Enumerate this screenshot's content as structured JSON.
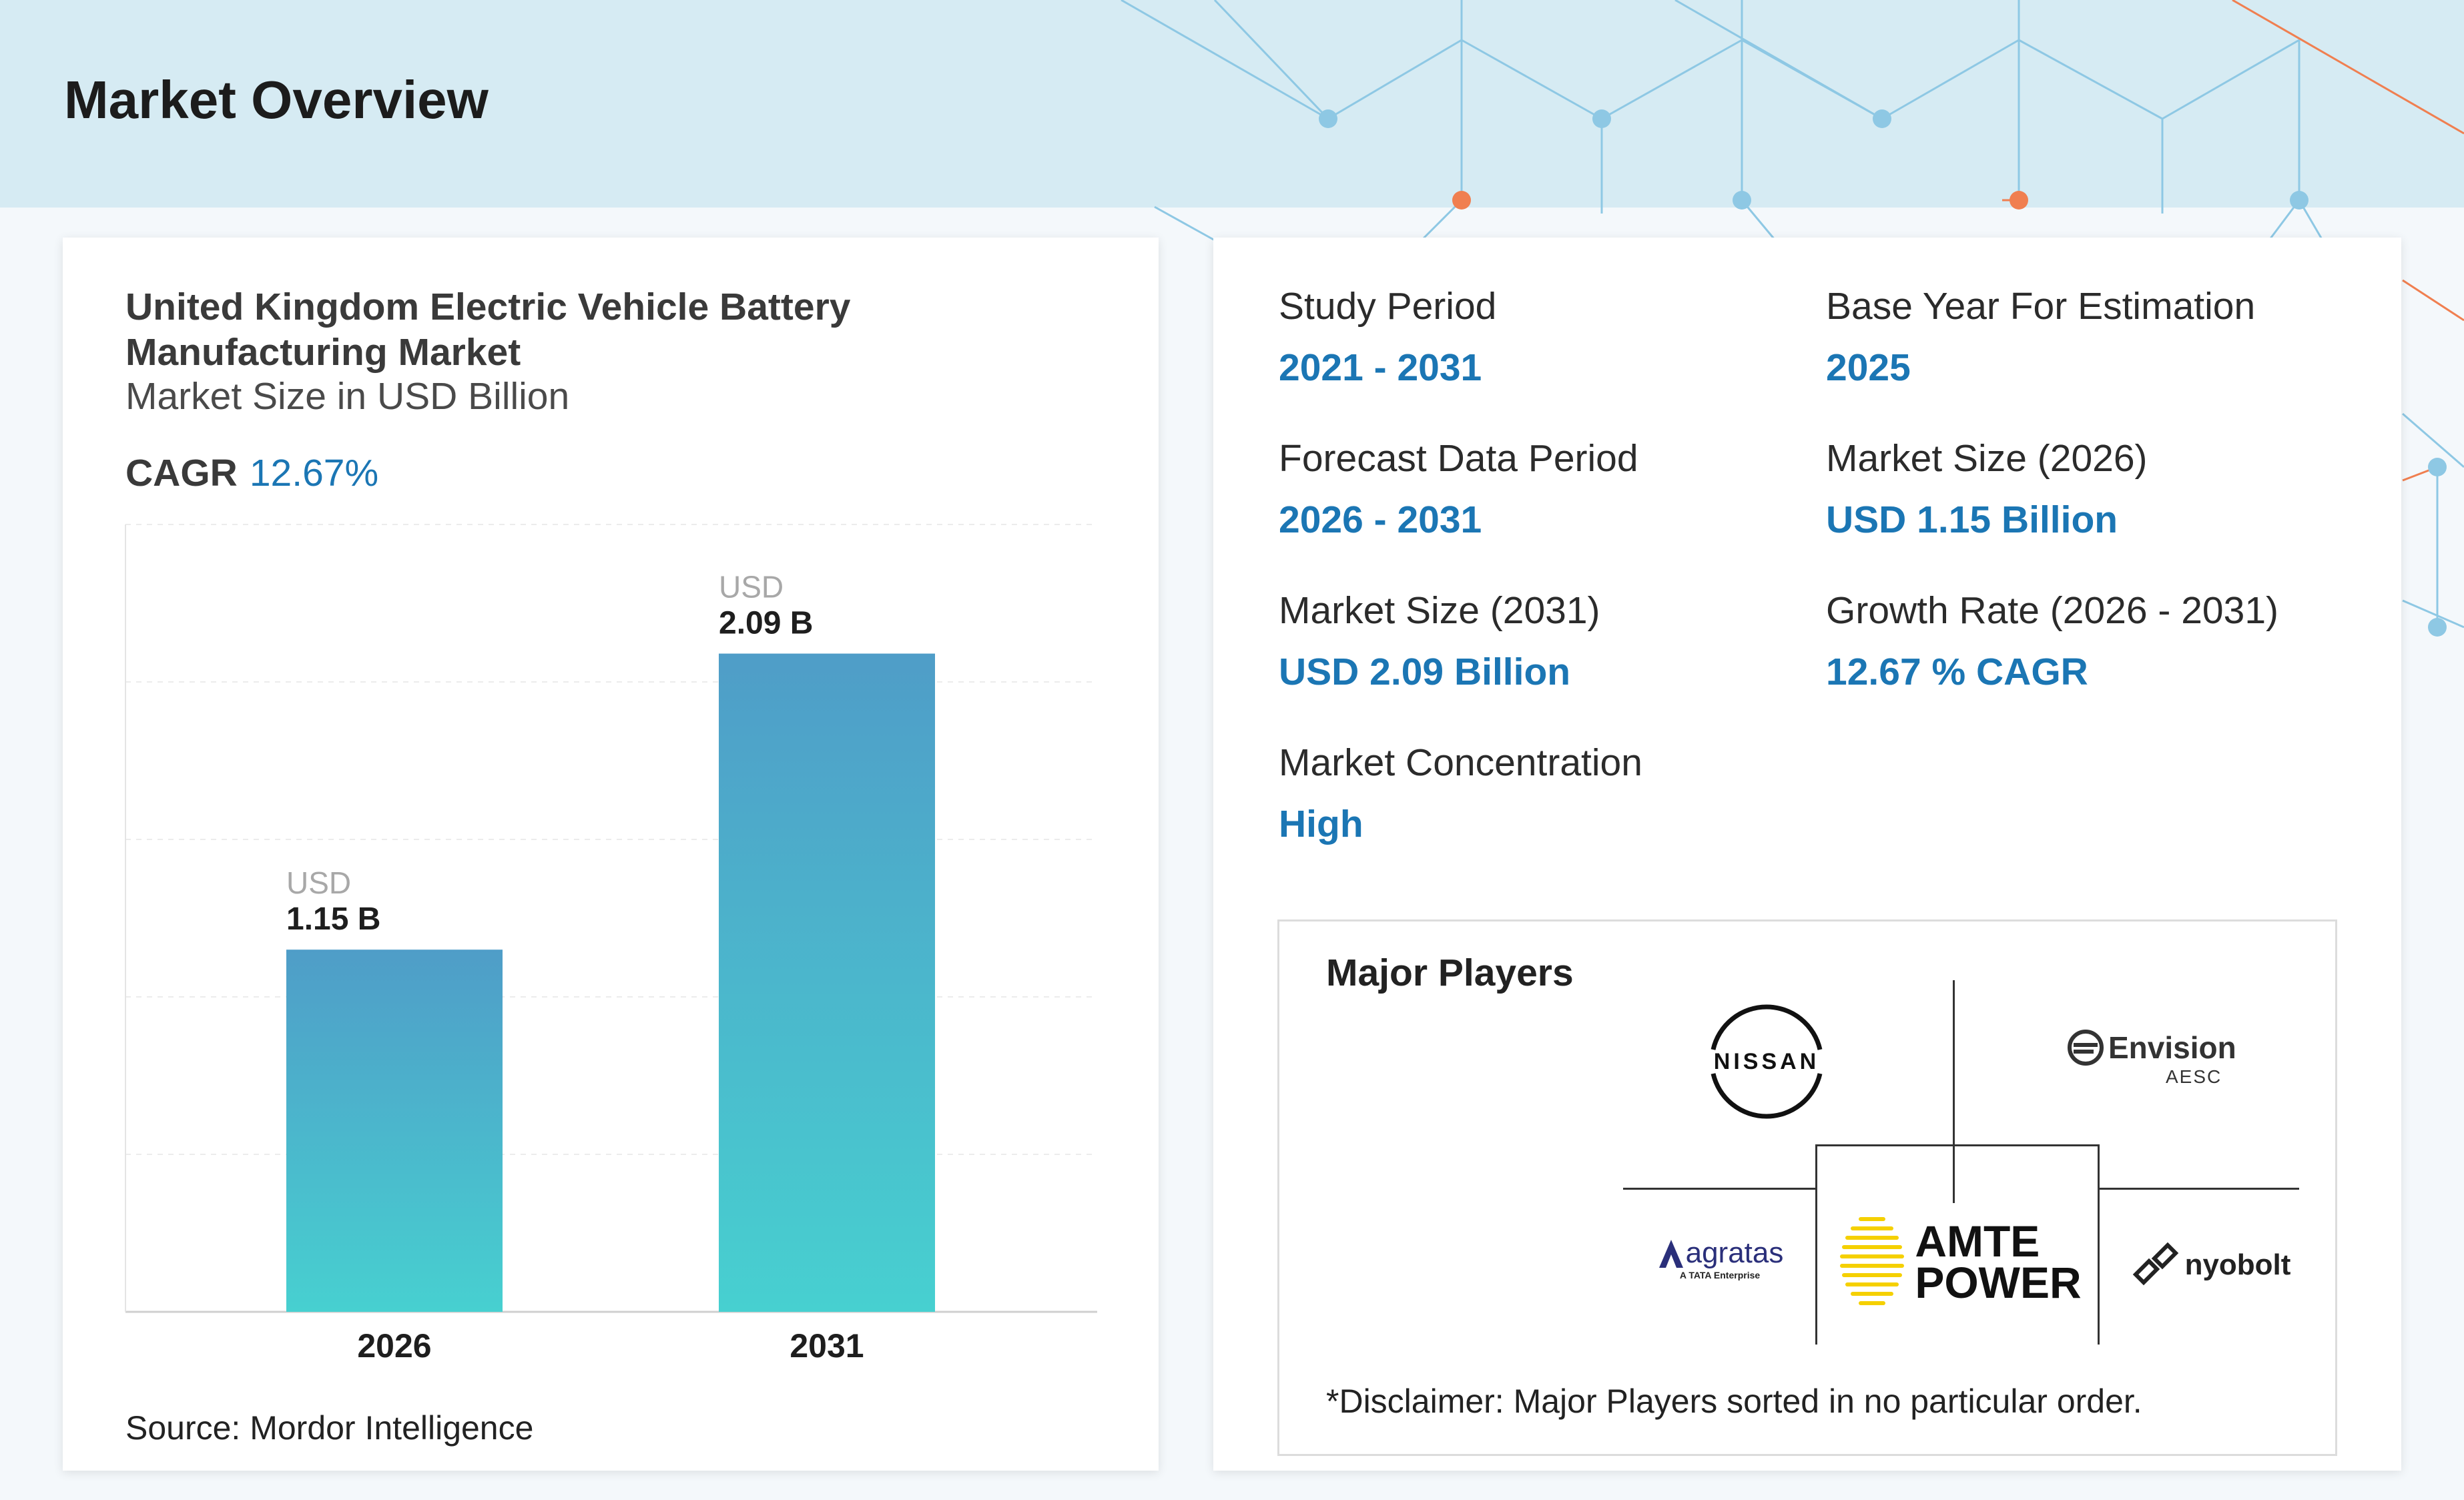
{
  "header": {
    "title": "Market Overview"
  },
  "chart_data": {
    "type": "bar",
    "title": "United Kingdom Electric Vehicle Battery Manufacturing Market",
    "subtitle": "Market Size in USD Billion",
    "cagr_label": "CAGR",
    "cagr_value": "12.67%",
    "categories": [
      "2026",
      "2031"
    ],
    "values": [
      1.15,
      2.09
    ],
    "value_prefix": "USD",
    "value_labels": [
      "1.15 B",
      "2.09 B"
    ],
    "ylim": [
      0,
      2.5
    ],
    "grid": true,
    "colors": {
      "bar_top": "#4f9dc8",
      "bar_bottom": "#47d0d0"
    }
  },
  "source": "Source: Mordor Intelligence",
  "stats": {
    "study_period": {
      "label": "Study Period",
      "value": "2021 - 2031"
    },
    "base_year": {
      "label": "Base Year For Estimation",
      "value": "2025"
    },
    "forecast_period": {
      "label": "Forecast Data Period",
      "value": "2026 - 2031"
    },
    "market_size_2026": {
      "label": "Market Size (2026)",
      "value": "USD 1.15 Billion"
    },
    "market_size_2031": {
      "label": "Market Size (2031)",
      "value": "USD 2.09 Billion"
    },
    "growth_rate": {
      "label": "Growth Rate (2026 - 2031)",
      "value": "12.67 % CAGR"
    },
    "concentration": {
      "label": "Market Concentration",
      "value": "High"
    }
  },
  "players": {
    "title": "Major Players",
    "disclaimer": "*Disclaimer: Major Players sorted in no particular order.",
    "logos": {
      "nissan": "NISSAN",
      "envision": "Envision",
      "envision_sub": "AESC",
      "agratas": "agratas",
      "agratas_sub": "A TATA Enterprise",
      "amte_line1": "AMTE",
      "amte_line2": "POWER",
      "nyobolt": "nyobolt"
    }
  },
  "colors": {
    "accent": "#1b76b4",
    "header_bg": "#d6ebf3",
    "network_blue": "#8ec8e4",
    "network_orange": "#f07f50"
  }
}
